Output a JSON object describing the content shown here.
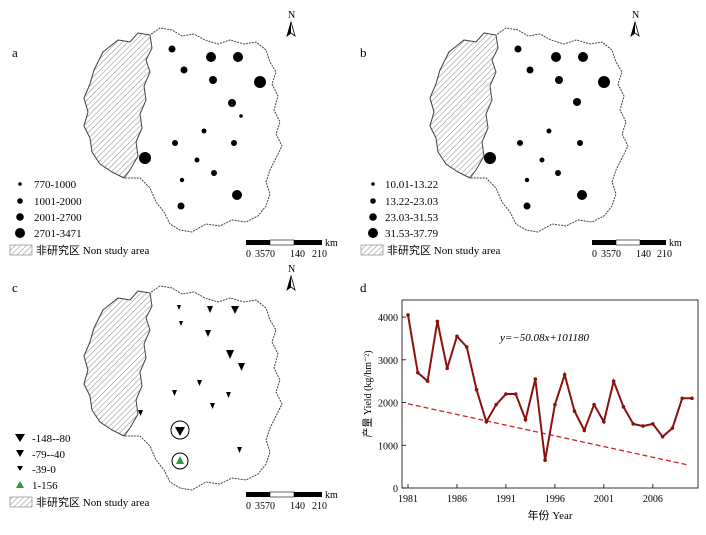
{
  "panels": {
    "a": {
      "label": "a",
      "legend": [
        "770-1000",
        "1001-2000",
        "2001-2700",
        "2701-3471"
      ]
    },
    "b": {
      "label": "b",
      "legend": [
        "10.01-13.22",
        "13.22-23.03",
        "23.03-31.53",
        "31.53-37.79"
      ]
    },
    "c": {
      "label": "c",
      "legend": [
        "-148--80",
        "-79--40",
        "-39-0",
        "1-156"
      ]
    },
    "d": {
      "label": "d"
    }
  },
  "non_study_area": "非研究区 Non study area",
  "north_label": "N",
  "scale_bar": {
    "ticks": [
      "0",
      "35",
      "70",
      "140",
      "210"
    ],
    "unit": "km"
  },
  "colors": {
    "line": "#8b1010",
    "trend": "#d02020",
    "up_marker": "#2e9b3a"
  },
  "chart_data": {
    "type": "line",
    "title": "",
    "xlabel": "年份 Year",
    "ylabel": "产量 Yield (kg/hm⁻²)",
    "equation": "y=−50.08x+101180",
    "xlim": [
      1981,
      2010
    ],
    "ylim": [
      0,
      4400
    ],
    "xticks": [
      "1981",
      "1986",
      "1991",
      "1996",
      "2001",
      "2006"
    ],
    "yticks": [
      "0",
      "1000",
      "2000",
      "3000",
      "4000"
    ],
    "series": [
      {
        "x": [
          1981,
          1982,
          1983,
          1984,
          1985,
          1986,
          1987,
          1988,
          1989,
          1990,
          1991,
          1992,
          1993,
          1994,
          1995,
          1996,
          1997,
          1998,
          1999,
          2000,
          2001,
          2002,
          2003,
          2004,
          2005,
          2006,
          2007,
          2008,
          2009,
          2010
        ],
        "values": [
          4050,
          2700,
          2500,
          3900,
          2800,
          3550,
          3300,
          2300,
          1550,
          1950,
          2200,
          2200,
          1600,
          2550,
          650,
          1950,
          2650,
          1800,
          1350,
          1950,
          1550,
          2500,
          1900,
          1500,
          1450,
          1500,
          1200,
          1400,
          2100,
          2100
        ]
      }
    ],
    "trend": {
      "slope": -50.08,
      "intercept": 101180
    }
  }
}
